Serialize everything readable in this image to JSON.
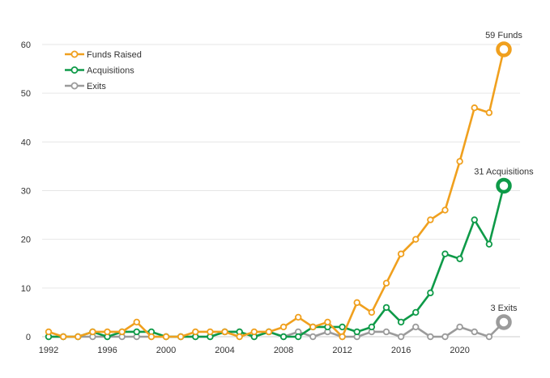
{
  "chart_data": {
    "type": "line",
    "title": "",
    "xlabel": "",
    "ylabel": "",
    "xlim": [
      1992,
      2023
    ],
    "ylim": [
      0,
      60
    ],
    "x_ticks": [
      "1992",
      "1996",
      "2000",
      "2004",
      "2008",
      "2012",
      "2016",
      "2020"
    ],
    "y_ticks": [
      "0",
      "10",
      "20",
      "30",
      "40",
      "50",
      "60"
    ],
    "grid": "horizontal",
    "legend_position": "top-left",
    "x": [
      1992,
      1993,
      1994,
      1995,
      1996,
      1997,
      1998,
      1999,
      2000,
      2001,
      2002,
      2003,
      2004,
      2005,
      2006,
      2007,
      2008,
      2009,
      2010,
      2011,
      2012,
      2013,
      2014,
      2015,
      2016,
      2017,
      2018,
      2019,
      2020,
      2021,
      2022,
      2023
    ],
    "series": [
      {
        "name": "Funds Raised",
        "color": "#f0a01e",
        "end_label": "59 Funds",
        "values": [
          1,
          0,
          0,
          1,
          1,
          1,
          3,
          0,
          0,
          0,
          1,
          1,
          1,
          0,
          1,
          1,
          2,
          4,
          2,
          3,
          0,
          7,
          5,
          11,
          17,
          20,
          24,
          26,
          36,
          47,
          46,
          59
        ]
      },
      {
        "name": "Acquisitions",
        "color": "#0e9a48",
        "end_label": "31 Acquisitions",
        "values": [
          0,
          0,
          0,
          1,
          0,
          1,
          1,
          1,
          0,
          0,
          0,
          0,
          1,
          1,
          0,
          1,
          0,
          0,
          2,
          2,
          2,
          1,
          2,
          6,
          3,
          5,
          9,
          17,
          16,
          24,
          19,
          31
        ]
      },
      {
        "name": "Exits",
        "color": "#9b9b9b",
        "end_label": "3 Exits",
        "values": [
          0,
          0,
          0,
          0,
          0,
          0,
          0,
          0,
          0,
          0,
          0,
          0,
          1,
          1,
          0,
          1,
          0,
          1,
          0,
          1,
          0,
          0,
          1,
          1,
          0,
          2,
          0,
          0,
          2,
          1,
          0,
          3
        ]
      }
    ]
  }
}
